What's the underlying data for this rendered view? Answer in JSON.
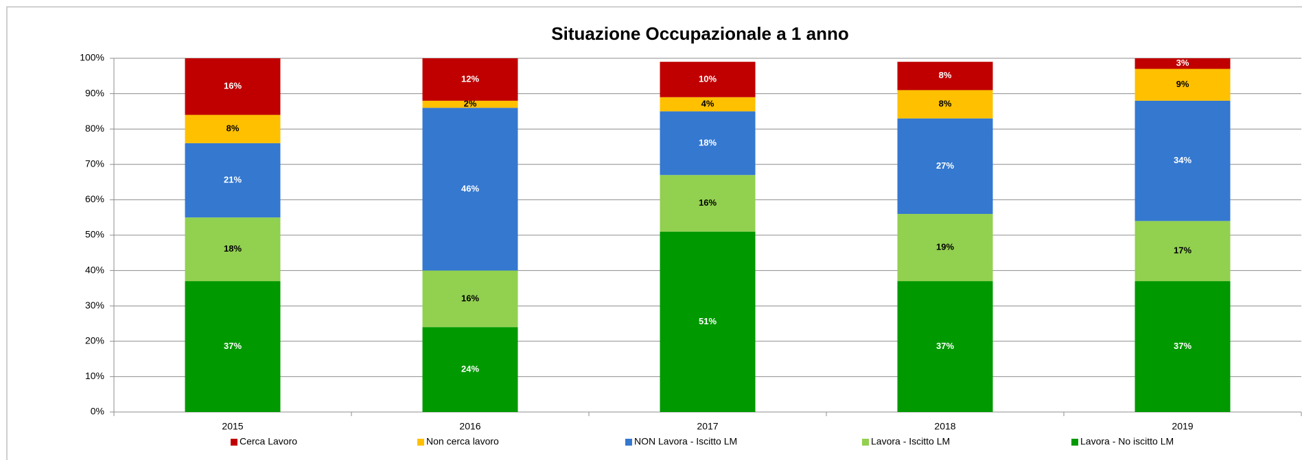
{
  "chart_data": {
    "type": "stacked_bar",
    "title": "Situazione Occupazionale a 1 anno",
    "categories": [
      "2015",
      "2016",
      "2017",
      "2018",
      "2019"
    ],
    "series": [
      {
        "name": "Cerca Lavoro",
        "color": "#c00000",
        "label_color": "#ffffff",
        "values": [
          16,
          12,
          10,
          8,
          3
        ],
        "value_labels": [
          "16%",
          "12%",
          "10%",
          "8%",
          "3%"
        ]
      },
      {
        "name": "Non cerca lavoro",
        "color": "#ffc000",
        "label_color": "#000000",
        "values": [
          8,
          2,
          4,
          8,
          9
        ],
        "value_labels": [
          "8%",
          "2%",
          "4%",
          "8%",
          "9%"
        ]
      },
      {
        "name": "NON Lavora - Iscitto LM",
        "color": "#3478d0",
        "label_color": "#ffffff",
        "values": [
          21,
          46,
          18,
          27,
          34
        ],
        "value_labels": [
          "21%",
          "46%",
          "18%",
          "27%",
          "34%"
        ]
      },
      {
        "name": "Lavora - Iscitto LM",
        "color": "#92d050",
        "label_color": "#000000",
        "values": [
          18,
          16,
          16,
          19,
          17
        ],
        "value_labels": [
          "18%",
          "16%",
          "16%",
          "19%",
          "17%"
        ]
      },
      {
        "name": "Lavora - No iscitto LM",
        "color": "#009900",
        "label_color": "#ffffff",
        "values": [
          37,
          24,
          51,
          37,
          37
        ],
        "value_labels": [
          "37%",
          "24%",
          "51%",
          "37%",
          "37%"
        ]
      }
    ],
    "ylim": [
      0,
      100
    ],
    "yticks": [
      {
        "value": 0,
        "label": "0%"
      },
      {
        "value": 10,
        "label": "10%"
      },
      {
        "value": 20,
        "label": "20%"
      },
      {
        "value": 30,
        "label": "30%"
      },
      {
        "value": 40,
        "label": "40%"
      },
      {
        "value": 50,
        "label": "50%"
      },
      {
        "value": 60,
        "label": "60%"
      },
      {
        "value": 70,
        "label": "70%"
      },
      {
        "value": 80,
        "label": "80%"
      },
      {
        "value": 90,
        "label": "90%"
      },
      {
        "value": 100,
        "label": "100%"
      }
    ],
    "grid": true,
    "legend": "bottom"
  }
}
